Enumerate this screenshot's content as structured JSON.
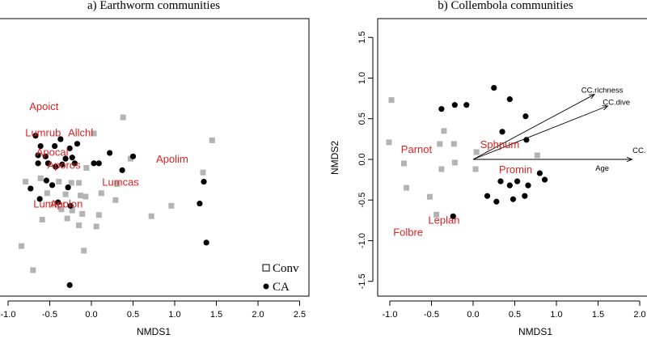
{
  "colors": {
    "conv": "#b3b3b3",
    "ca": "#000000",
    "species": "#dd2222",
    "axis": "#000000"
  },
  "chart_data": [
    {
      "type": "scatter",
      "title": "a) Earthworm communities",
      "xlabel": "NMDS1",
      "ylabel": "",
      "xlim": [
        -1.0,
        2.5
      ],
      "ylim": [
        -1.15,
        0.75
      ],
      "xticks": [
        "-1.0",
        "-0.5",
        "0.0",
        "0.5",
        "1.0",
        "1.5",
        "2.0",
        "2.5"
      ],
      "xtick_values": [
        -1.0,
        -0.5,
        0.0,
        0.5,
        1.0,
        1.5,
        2.0,
        2.5
      ],
      "legend": {
        "position": "bottom-right",
        "entries": [
          "Conv",
          "CA"
        ]
      },
      "series": [
        {
          "name": "Conv",
          "marker": "square",
          "points": [
            [
              0.38,
              0.38
            ],
            [
              0.03,
              0.24
            ],
            [
              1.45,
              0.18
            ],
            [
              0.47,
              0.02
            ],
            [
              -0.06,
              -0.06
            ],
            [
              1.34,
              -0.1
            ],
            [
              -0.79,
              -0.18
            ],
            [
              -0.61,
              -0.15
            ],
            [
              -0.39,
              -0.18
            ],
            [
              -0.24,
              -0.19
            ],
            [
              -0.15,
              -0.19
            ],
            [
              0.12,
              -0.28
            ],
            [
              0.31,
              -0.2
            ],
            [
              -0.53,
              -0.28
            ],
            [
              -0.31,
              -0.29
            ],
            [
              -0.07,
              -0.31
            ],
            [
              -0.13,
              -0.3
            ],
            [
              0.29,
              -0.34
            ],
            [
              0.96,
              -0.39
            ],
            [
              -0.36,
              -0.42
            ],
            [
              -0.23,
              -0.43
            ],
            [
              -0.11,
              -0.46
            ],
            [
              0.72,
              -0.48
            ],
            [
              0.09,
              -0.47
            ],
            [
              -0.29,
              -0.5
            ],
            [
              -0.59,
              -0.51
            ],
            [
              -0.15,
              -0.56
            ],
            [
              0.06,
              -0.57
            ],
            [
              -0.84,
              -0.74
            ],
            [
              -0.09,
              -0.78
            ],
            [
              -0.7,
              -0.95
            ]
          ]
        },
        {
          "name": "CA",
          "marker": "circle",
          "points": [
            [
              -0.67,
              0.22
            ],
            [
              -0.37,
              0.19
            ],
            [
              -0.61,
              0.13
            ],
            [
              -0.44,
              0.13
            ],
            [
              -0.26,
              0.11
            ],
            [
              -0.17,
              0.15
            ],
            [
              0.22,
              0.07
            ],
            [
              -0.64,
              0.05
            ],
            [
              -0.55,
              0.04
            ],
            [
              -0.31,
              0.02
            ],
            [
              -0.23,
              0.03
            ],
            [
              0.5,
              0.04
            ],
            [
              -0.64,
              -0.02
            ],
            [
              -0.52,
              -0.02
            ],
            [
              -0.43,
              -0.05
            ],
            [
              -0.35,
              -0.03
            ],
            [
              -0.2,
              -0.02
            ],
            [
              0.03,
              -0.02
            ],
            [
              0.09,
              -0.02
            ],
            [
              0.37,
              -0.08
            ],
            [
              -0.54,
              -0.17
            ],
            [
              -0.47,
              -0.21
            ],
            [
              -0.28,
              -0.23
            ],
            [
              -0.73,
              -0.24
            ],
            [
              -0.62,
              -0.33
            ],
            [
              -0.4,
              -0.36
            ],
            [
              -0.25,
              -0.39
            ],
            [
              1.35,
              -0.18
            ],
            [
              1.3,
              -0.37
            ],
            [
              1.38,
              -0.71
            ],
            [
              -0.26,
              -1.08
            ]
          ]
        }
      ],
      "species": [
        {
          "label": "Apoict",
          "x": -0.57,
          "y": 0.48
        },
        {
          "label": "Lumrub",
          "x": -0.58,
          "y": 0.25
        },
        {
          "label": "Allchl",
          "x": -0.13,
          "y": 0.25
        },
        {
          "label": "Apocal",
          "x": -0.47,
          "y": 0.08
        },
        {
          "label": "Aporos",
          "x": -0.33,
          "y": -0.03
        },
        {
          "label": "Apolim",
          "x": 0.97,
          "y": 0.02
        },
        {
          "label": "Lumcas",
          "x": 0.35,
          "y": -0.18
        },
        {
          "label": "Lumter",
          "x": -0.5,
          "y": -0.37
        },
        {
          "label": "Apolon",
          "x": -0.3,
          "y": -0.37
        }
      ]
    },
    {
      "type": "scatter",
      "title": "b) Collembola communities",
      "xlabel": "NMDS1",
      "ylabel": "NMDS2",
      "xlim": [
        -1.0,
        2.0
      ],
      "ylim": [
        -1.5,
        1.5
      ],
      "xticks": [
        "-1.0",
        "-0.5",
        "0.0",
        "0.5",
        "1.0",
        "1.5",
        "2.0"
      ],
      "xtick_values": [
        -1.0,
        -0.5,
        0.0,
        0.5,
        1.0,
        1.5,
        2.0
      ],
      "yticks": [
        "-1.5",
        "-1.0",
        "-0.5",
        "0.0",
        "0.5",
        "1.0",
        "1.5"
      ],
      "ytick_values": [
        -1.5,
        -1.0,
        -0.5,
        0.0,
        0.5,
        1.0,
        1.5
      ],
      "series": [
        {
          "name": "Conv",
          "marker": "square",
          "points": [
            [
              -0.98,
              0.73
            ],
            [
              -1.01,
              0.21
            ],
            [
              -0.35,
              0.35
            ],
            [
              -0.83,
              -0.05
            ],
            [
              -0.4,
              0.19
            ],
            [
              0.04,
              0.09
            ],
            [
              -0.8,
              -0.35
            ],
            [
              -0.38,
              -0.12
            ],
            [
              -0.22,
              -0.04
            ],
            [
              -0.23,
              0.19
            ],
            [
              -0.52,
              -0.46
            ],
            [
              -0.44,
              -0.68
            ],
            [
              0.03,
              -0.12
            ],
            [
              0.77,
              0.05
            ]
          ]
        },
        {
          "name": "CA",
          "marker": "circle",
          "points": [
            [
              -0.38,
              0.62
            ],
            [
              -0.22,
              0.67
            ],
            [
              -0.08,
              0.67
            ],
            [
              0.25,
              0.88
            ],
            [
              0.44,
              0.74
            ],
            [
              0.63,
              0.53
            ],
            [
              0.35,
              0.34
            ],
            [
              0.64,
              0.24
            ],
            [
              0.33,
              -0.27
            ],
            [
              0.53,
              -0.27
            ],
            [
              0.8,
              -0.17
            ],
            [
              0.86,
              -0.25
            ],
            [
              0.17,
              -0.45
            ],
            [
              0.44,
              -0.32
            ],
            [
              0.66,
              -0.32
            ],
            [
              0.28,
              -0.52
            ],
            [
              0.48,
              -0.49
            ],
            [
              0.62,
              -0.45
            ],
            [
              -0.24,
              -0.7
            ]
          ]
        }
      ],
      "species": [
        {
          "label": "Parnot",
          "x": -0.68,
          "y": 0.13
        },
        {
          "label": "Sphpum",
          "x": 0.32,
          "y": 0.19
        },
        {
          "label": "Promin",
          "x": 0.51,
          "y": -0.12
        },
        {
          "label": "Leplan",
          "x": -0.35,
          "y": -0.74
        },
        {
          "label": "Folbre",
          "x": -0.78,
          "y": -0.89
        }
      ],
      "vectors": [
        {
          "label": "CC.richness",
          "x": 1.55,
          "y": 0.85
        },
        {
          "label": "CC.dive",
          "x": 1.72,
          "y": 0.7
        },
        {
          "label": "CC.",
          "x": 2.03,
          "y": 0.0
        },
        {
          "label": "Age",
          "x": 1.55,
          "y": -0.03,
          "label_only": true
        }
      ]
    }
  ]
}
